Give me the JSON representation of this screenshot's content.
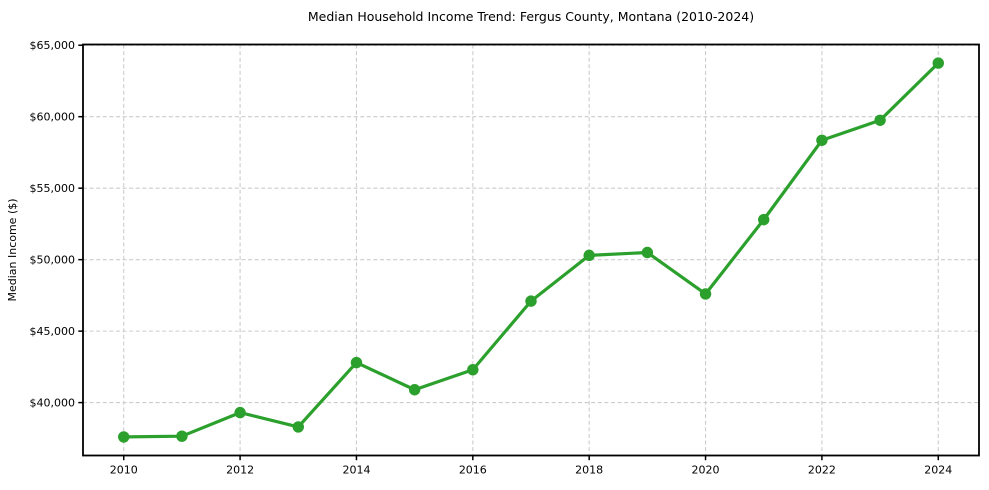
{
  "chart_data": {
    "type": "line",
    "title": "Median Household Income Trend: Fergus County, Montana (2010-2024)",
    "xlabel": "",
    "ylabel": "Median Income ($)",
    "x": [
      2010,
      2011,
      2012,
      2013,
      2014,
      2015,
      2016,
      2017,
      2018,
      2019,
      2020,
      2021,
      2022,
      2023,
      2024
    ],
    "values": [
      37600,
      37650,
      39300,
      38300,
      42800,
      40900,
      42300,
      47100,
      50300,
      50500,
      47600,
      52800,
      58350,
      59750,
      63750
    ],
    "xlim": [
      2009.3,
      2024.7
    ],
    "ylim": [
      36300,
      65050
    ],
    "xticks": [
      2010,
      2012,
      2014,
      2016,
      2018,
      2020,
      2022,
      2024
    ],
    "xtick_labels": [
      "2010",
      "2012",
      "2014",
      "2016",
      "2018",
      "2020",
      "2022",
      "2024"
    ],
    "yticks": [
      40000,
      45000,
      50000,
      55000,
      60000,
      65000
    ],
    "ytick_labels": [
      "$40,000",
      "$45,000",
      "$50,000",
      "$55,000",
      "$60,000",
      "$65,000"
    ],
    "grid": true,
    "grid_style": "dashed",
    "legend_position": "none",
    "marker": "circle"
  },
  "colors": {
    "line": "#2ca02c",
    "marker": "#2ca02c",
    "grid": "#cccccc",
    "axis": "#000000",
    "text": "#000000",
    "background": "#ffffff"
  }
}
